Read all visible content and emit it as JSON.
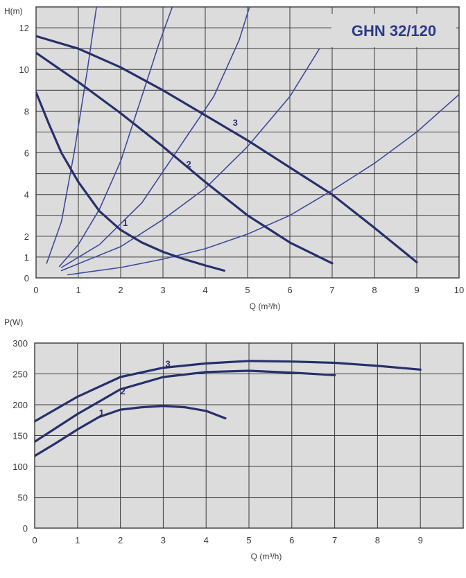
{
  "chart_data": [
    {
      "type": "line",
      "title": "GHN 32/120",
      "xlabel": "Q (m³/h)",
      "ylabel": "H(m)",
      "xlim": [
        0,
        10
      ],
      "ylim": [
        0,
        13
      ],
      "x_ticks": [
        "0",
        "1",
        "2",
        "3",
        "4",
        "5",
        "6",
        "7",
        "8",
        "9",
        "10"
      ],
      "y_ticks": [
        {
          "value": 0,
          "label": "0"
        },
        {
          "value": 1,
          "label": "1"
        },
        {
          "value": 2,
          "label": "2"
        },
        {
          "value": 4,
          "label": "4"
        },
        {
          "value": 6,
          "label": "6"
        },
        {
          "value": 8,
          "label": "8"
        },
        {
          "value": 10,
          "label": "10"
        },
        {
          "value": 12,
          "label": "12"
        }
      ],
      "grid": true,
      "colors": {
        "background": "#dcdcdc",
        "grid": "#3a3a3a",
        "curve": "#27306b",
        "title": "#2b3a8c"
      },
      "series": [
        {
          "name": "1",
          "x": [
            0,
            0.3,
            0.6,
            1.0,
            1.5,
            2.0,
            2.5,
            3.0,
            3.5,
            4.0,
            4.45
          ],
          "y": [
            8.9,
            7.4,
            6.0,
            4.6,
            3.2,
            2.3,
            1.7,
            1.25,
            0.9,
            0.6,
            0.35
          ]
        },
        {
          "name": "2",
          "x": [
            0,
            1,
            2,
            3,
            4,
            5,
            6,
            7
          ],
          "y": [
            10.8,
            9.4,
            7.9,
            6.3,
            4.6,
            3.0,
            1.7,
            0.7
          ]
        },
        {
          "name": "3",
          "x": [
            0,
            1,
            2,
            3,
            4,
            5,
            6,
            7,
            8,
            9
          ],
          "y": [
            11.6,
            11.0,
            10.1,
            9.0,
            7.8,
            6.6,
            5.3,
            4.0,
            2.4,
            0.75
          ]
        }
      ],
      "system_curves": [
        {
          "x": [
            0.25,
            0.6,
            0.9,
            1.2,
            1.5
          ],
          "y": [
            0.7,
            2.7,
            6.0,
            9.8,
            14.0
          ]
        },
        {
          "x": [
            0.55,
            1.0,
            1.5,
            2.0,
            2.5,
            2.9,
            3.4
          ],
          "y": [
            0.55,
            1.6,
            3.3,
            5.6,
            8.7,
            11.2,
            14.0
          ]
        },
        {
          "x": [
            0.6,
            1.5,
            2.5,
            3.5,
            4.2,
            4.8,
            5.2
          ],
          "y": [
            0.5,
            1.6,
            3.6,
            6.6,
            8.7,
            11.4,
            14.0
          ]
        },
        {
          "x": [
            0.6,
            2.0,
            3.0,
            4.0,
            5.0,
            6.0,
            6.7
          ],
          "y": [
            0.35,
            1.5,
            2.8,
            4.3,
            6.3,
            8.7,
            11.0
          ]
        },
        {
          "x": [
            0.75,
            2.0,
            3.0,
            4.0,
            5.0,
            6.0,
            7.0,
            8.0,
            9.0,
            10.0
          ],
          "y": [
            0.15,
            0.5,
            0.9,
            1.4,
            2.1,
            3.0,
            4.2,
            5.5,
            7.0,
            8.8
          ]
        }
      ]
    },
    {
      "type": "line",
      "title": "",
      "xlabel": "Q (m³/h)",
      "ylabel": "P(W)",
      "xlim": [
        0,
        10
      ],
      "ylim": [
        0,
        300
      ],
      "x_ticks": [
        "0",
        "1",
        "2",
        "3",
        "4",
        "5",
        "6",
        "7",
        "8",
        "9"
      ],
      "y_ticks": [
        {
          "value": 0,
          "label": "0"
        },
        {
          "value": 50,
          "label": "50"
        },
        {
          "value": 100,
          "label": "100"
        },
        {
          "value": 150,
          "label": "150"
        },
        {
          "value": 200,
          "label": "200"
        },
        {
          "value": 250,
          "label": "250"
        },
        {
          "value": 300,
          "label": "300"
        }
      ],
      "grid": true,
      "colors": {
        "background": "#dcdcdc",
        "grid": "#3a3a3a",
        "curve": "#27306b"
      },
      "series": [
        {
          "name": "1",
          "x": [
            0,
            0.5,
            1.0,
            1.5,
            2.0,
            2.5,
            3.0,
            3.5,
            4.0,
            4.45
          ],
          "y": [
            117,
            138,
            160,
            180,
            192,
            196,
            198,
            196,
            190,
            178
          ]
        },
        {
          "name": "2",
          "x": [
            0,
            1,
            2,
            3,
            4,
            5,
            6,
            7
          ],
          "y": [
            140,
            185,
            225,
            245,
            253,
            255,
            252,
            248
          ]
        },
        {
          "name": "3",
          "x": [
            0,
            1,
            2,
            3,
            4,
            5,
            6,
            7,
            8,
            9
          ],
          "y": [
            173,
            213,
            245,
            260,
            267,
            271,
            270,
            268,
            263,
            257
          ]
        }
      ]
    }
  ]
}
